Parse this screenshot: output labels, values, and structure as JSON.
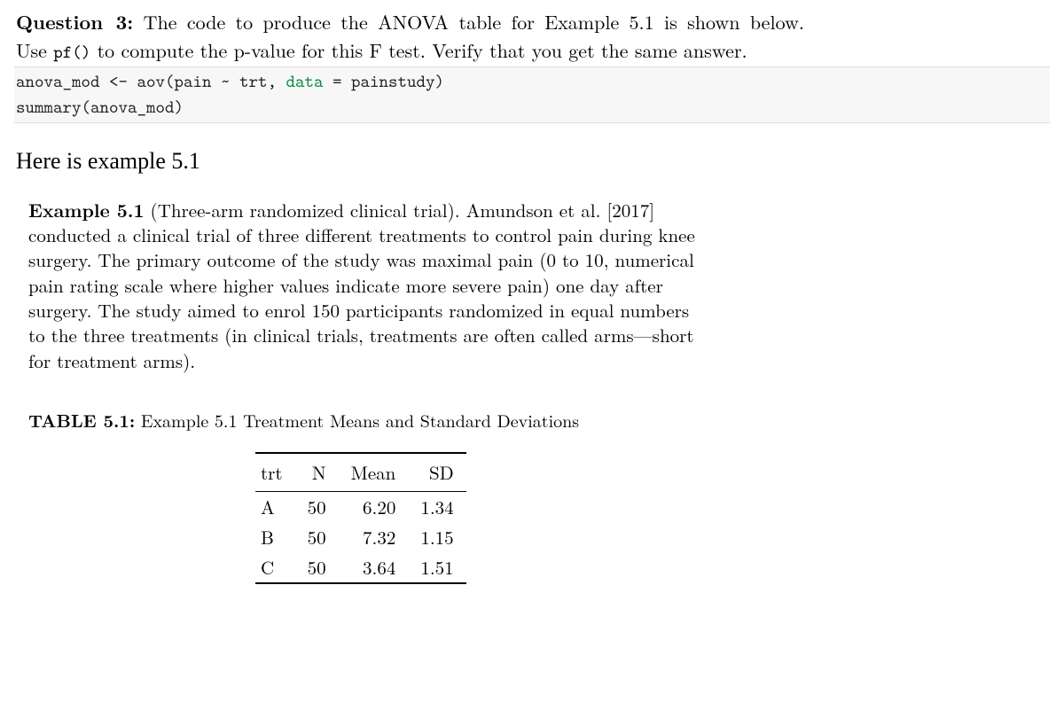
{
  "question": {
    "label": "Question 3:",
    "line1_rest": "The code to produce the ANOVA table for Example 5.1 is shown below.",
    "line2_a": "Use ",
    "line2_mono": "pf()",
    "line2_b": " to compute the p-value for this F test. Verify that you get the same answer."
  },
  "code": {
    "l1_a": "anova_mod <- aov(pain ~ trt, ",
    "l1_kw": "data",
    "l1_b": " = painstudy)",
    "l2": "summary(anova_mod)"
  },
  "here_line": "Here is example 5.1",
  "example": {
    "label": "Example 5.1",
    "title_rest": " (Three-arm randomized clinical trial). Amundson et al. [2017]",
    "body": "conducted a clinical trial of three different treatments to control pain during knee surgery. The primary outcome of the study was maximal pain (0 to 10, numerical pain rating scale where higher values indicate more severe pain) one day after surgery. The study aimed to enrol 150 participants randomized in equal numbers to the three treatments (in clinical trials, treatments are often called arms—short for treatment arms)."
  },
  "table": {
    "caption_label": "TABLE 5.1:",
    "caption_rest": " Example 5.1 Treatment Means and Standard Deviations",
    "columns": [
      "trt",
      "N",
      "Mean",
      "SD"
    ],
    "rows": [
      [
        "A",
        "50",
        "6.20",
        "1.34"
      ],
      [
        "B",
        "50",
        "7.32",
        "1.15"
      ],
      [
        "C",
        "50",
        "3.64",
        "1.51"
      ]
    ],
    "col_align": [
      "left",
      "right",
      "right",
      "right"
    ]
  },
  "colors": {
    "code_bg": "#f7f7f7",
    "code_keyword": "#0b8a3e",
    "text": "#000000",
    "background": "#ffffff"
  },
  "fonts": {
    "body_family": "Latin Modern Roman / Computer Modern (serif)",
    "mono_family": "Latin Modern Mono / Courier",
    "body_size_pt": 16,
    "here_line_size_pt": 19,
    "example_size_pt": 15
  }
}
